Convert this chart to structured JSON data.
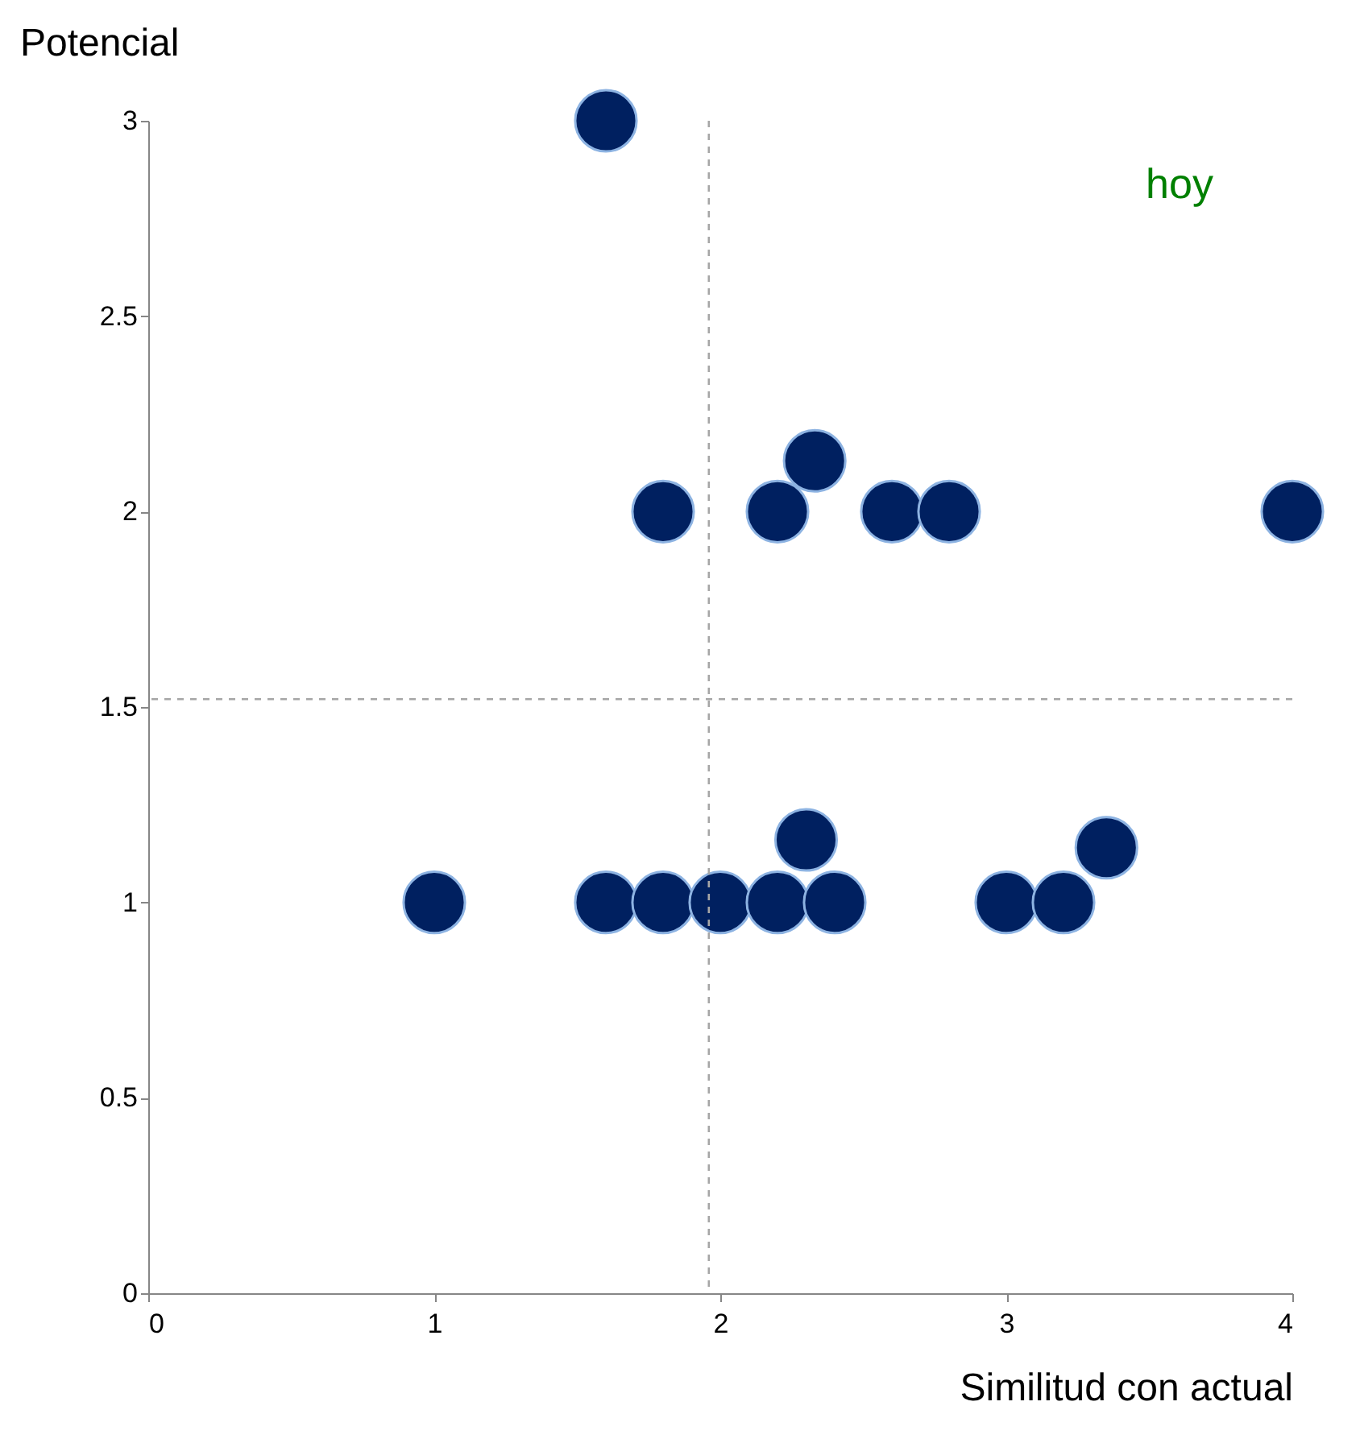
{
  "chart_data": {
    "type": "scatter",
    "xlabel": "Similitud con actual",
    "ylabel": "Potencial",
    "x": [
      1.6,
      1.8,
      2.2,
      2.33,
      2.6,
      2.8,
      4,
      1,
      1.6,
      1.8,
      2,
      2.2,
      2.3,
      2.4,
      3,
      3.2,
      3.35
    ],
    "series": [
      {
        "color": "#002060",
        "values": [
          3,
          2,
          2,
          2.13,
          2,
          2,
          2,
          1,
          1,
          1,
          1,
          1,
          1.16,
          1,
          1,
          1,
          1.14
        ]
      }
    ],
    "xlim": [
      0,
      4
    ],
    "ylim": [
      0,
      3
    ],
    "xticks": [
      0,
      1,
      2,
      3,
      4
    ],
    "yticks": [
      0,
      0.5,
      1,
      1.5,
      2,
      2.5,
      3
    ],
    "ref_lines": [
      {
        "axis": "x",
        "value": 1.96,
        "color": "#a6a6a6",
        "line_style": "dashed"
      },
      {
        "axis": "y",
        "value": 1.52,
        "color": "#a6a6a6",
        "line_style": "dashed"
      }
    ],
    "annotations": [
      "hoy"
    ],
    "grid": false
  }
}
